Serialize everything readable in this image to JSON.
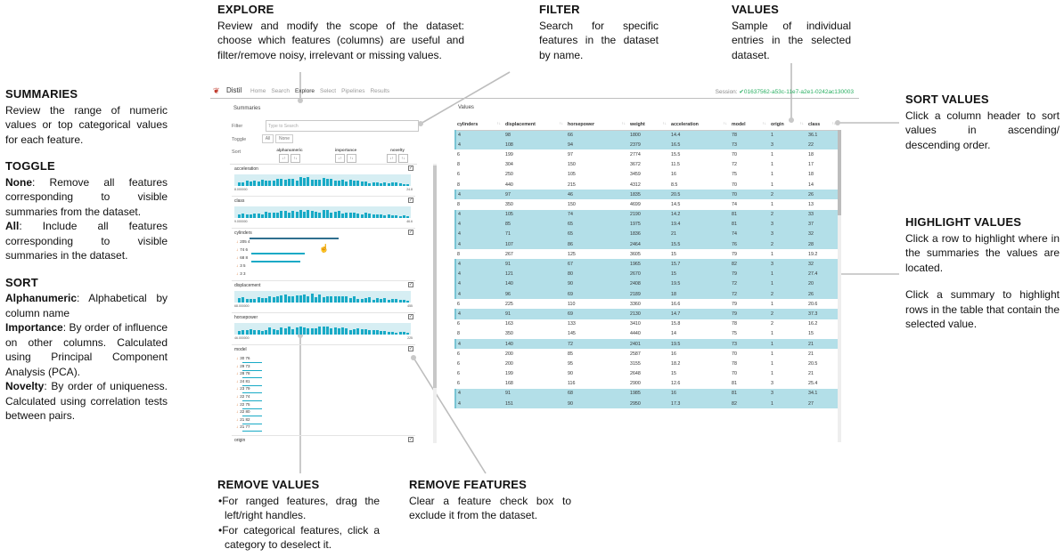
{
  "annotations": {
    "explore": {
      "title": "EXPLORE",
      "text": "Review and modify the scope of the dataset: choose which features (columns) are useful and filter/remove noisy, irrelevant or missing values."
    },
    "filter": {
      "title": "FILTER",
      "text": "Search for specific features in the dataset by name."
    },
    "values": {
      "title": "VALUES",
      "text": "Sample of individual entries in the selected dataset."
    },
    "summaries": {
      "title": "SUMMARIES",
      "text": "Review the range of numeric values or top categorical values for each feature."
    },
    "toggle": {
      "title": "TOGGLE",
      "none_label": "None",
      "none_text": ": Remove all features corresponding to visible summaries from the dataset.",
      "all_label": "All",
      "all_text": ": Include all features corresponding to visible summaries in the dataset."
    },
    "sort": {
      "title": "SORT",
      "alpha_label": "Alphanumeric",
      "alpha_text": ": Alphabetical by column name",
      "imp_label": "Importance",
      "imp_text": ": By order of influence on other columns. Calculated using Principal Component Analysis (PCA).",
      "nov_label": "Novelty",
      "nov_text": ": By order of uniqueness. Calculated using correlation tests between pairs."
    },
    "sort_values": {
      "title": "SORT VALUES",
      "text": "Click a column header to sort values in ascending/ descending order."
    },
    "highlight_values": {
      "title": "HIGHLIGHT VALUES",
      "text1": "Click a row to highlight where in the summaries the values are located.",
      "text2": "Click a summary to highlight rows in the table that contain the selected value."
    },
    "remove_values": {
      "title": "REMOVE VALUES",
      "item1": "•For ranged features, drag the left/right handles.",
      "item2": "•For categorical features, click a category to deselect it."
    },
    "remove_features": {
      "title": "REMOVE FEATURES",
      "text": "Clear a feature check box to exclude it from the dataset."
    }
  },
  "app": {
    "brand": "Distil",
    "nav": [
      "Home",
      "Search",
      "Explore",
      "Select",
      "Pipelines",
      "Results"
    ],
    "active_nav": "Explore",
    "session_label": "Session:",
    "session_id": "✔01637562-a53c-11e7-a2e1-0242ac130003",
    "summaries_title": "Summaries",
    "filter_label": "Filter",
    "filter_placeholder": "Type to Search",
    "toggle_label": "Toggle",
    "toggle_all": "All",
    "toggle_none": "None",
    "sort_label": "Sort",
    "sort_groups": [
      "alphanumeric",
      "importance",
      "novelty"
    ],
    "sort_asc": "↓↑",
    "sort_desc": "↑↓",
    "checkmark": "✓",
    "features": {
      "acceleration": {
        "name": "acceleration",
        "min": "8.000000",
        "max": "24.8"
      },
      "class": {
        "name": "class",
        "min": "9.000000",
        "max": "46.6"
      },
      "cylinders": {
        "name": "cylinders",
        "cats": [
          {
            "x": "↓",
            "label": "205 4"
          },
          {
            "x": "↓",
            "label": "74 6"
          },
          {
            "x": "↓",
            "label": "68 8"
          },
          {
            "x": "↓",
            "label": "3 5"
          },
          {
            "x": "↓",
            "label": "3 3"
          }
        ]
      },
      "displacement": {
        "name": "displacement",
        "min": "68.000000",
        "max": "455"
      },
      "horsepower": {
        "name": "horsepower",
        "min": "46.000000",
        "max": "225"
      },
      "model": {
        "name": "model",
        "cats": [
          {
            "x": "↓",
            "label": "30 76"
          },
          {
            "x": "↓",
            "label": "29 73"
          },
          {
            "x": "↓",
            "label": "28 78"
          },
          {
            "x": "↓",
            "label": "24 81"
          },
          {
            "x": "↓",
            "label": "23 79"
          },
          {
            "x": "↓",
            "label": "22 74"
          },
          {
            "x": "↓",
            "label": "22 75"
          },
          {
            "x": "↓",
            "label": "22 80"
          },
          {
            "x": "↓",
            "label": "21 82"
          },
          {
            "x": "↓",
            "label": "21 77"
          }
        ]
      },
      "origin": {
        "name": "origin"
      }
    },
    "values_title": "Values",
    "table": {
      "columns": [
        "cylinders",
        "displacement",
        "horsepower",
        "weight",
        "acceleration",
        "model",
        "origin",
        "class"
      ],
      "sort_arrow": "↑↓",
      "rows": [
        {
          "hl": true,
          "c": [
            "4",
            "98",
            "66",
            "1800",
            "14.4",
            "78",
            "1",
            "36.1"
          ]
        },
        {
          "hl": true,
          "c": [
            "4",
            "108",
            "94",
            "2379",
            "16.5",
            "73",
            "3",
            "22"
          ]
        },
        {
          "hl": false,
          "c": [
            "6",
            "199",
            "97",
            "2774",
            "15.5",
            "70",
            "1",
            "18"
          ]
        },
        {
          "hl": false,
          "c": [
            "8",
            "304",
            "150",
            "3672",
            "11.5",
            "72",
            "1",
            "17"
          ]
        },
        {
          "hl": false,
          "c": [
            "6",
            "250",
            "105",
            "3459",
            "16",
            "75",
            "1",
            "18"
          ]
        },
        {
          "hl": false,
          "c": [
            "8",
            "440",
            "215",
            "4312",
            "8.5",
            "70",
            "1",
            "14"
          ]
        },
        {
          "hl": true,
          "c": [
            "4",
            "97",
            "46",
            "1835",
            "20.5",
            "70",
            "2",
            "26"
          ]
        },
        {
          "hl": false,
          "c": [
            "8",
            "350",
            "150",
            "4699",
            "14.5",
            "74",
            "1",
            "13"
          ]
        },
        {
          "hl": true,
          "c": [
            "4",
            "105",
            "74",
            "2190",
            "14.2",
            "81",
            "2",
            "33"
          ]
        },
        {
          "hl": true,
          "c": [
            "4",
            "85",
            "65",
            "1975",
            "19.4",
            "81",
            "3",
            "37"
          ]
        },
        {
          "hl": true,
          "c": [
            "4",
            "71",
            "65",
            "1836",
            "21",
            "74",
            "3",
            "32"
          ]
        },
        {
          "hl": true,
          "c": [
            "4",
            "107",
            "86",
            "2464",
            "15.5",
            "76",
            "2",
            "28"
          ]
        },
        {
          "hl": false,
          "c": [
            "8",
            "267",
            "125",
            "3605",
            "15",
            "79",
            "1",
            "19.2"
          ]
        },
        {
          "hl": true,
          "c": [
            "4",
            "91",
            "67",
            "1965",
            "15.7",
            "82",
            "3",
            "32"
          ]
        },
        {
          "hl": true,
          "c": [
            "4",
            "121",
            "80",
            "2670",
            "15",
            "79",
            "1",
            "27.4"
          ]
        },
        {
          "hl": true,
          "c": [
            "4",
            "140",
            "90",
            "2408",
            "19.5",
            "72",
            "1",
            "20"
          ]
        },
        {
          "hl": true,
          "c": [
            "4",
            "96",
            "69",
            "2189",
            "18",
            "72",
            "2",
            "26"
          ]
        },
        {
          "hl": false,
          "c": [
            "6",
            "225",
            "110",
            "3360",
            "16.6",
            "79",
            "1",
            "20.6"
          ]
        },
        {
          "hl": true,
          "c": [
            "4",
            "91",
            "69",
            "2130",
            "14.7",
            "79",
            "2",
            "37.3"
          ]
        },
        {
          "hl": false,
          "c": [
            "6",
            "163",
            "133",
            "3410",
            "15.8",
            "78",
            "2",
            "16.2"
          ]
        },
        {
          "hl": false,
          "c": [
            "8",
            "350",
            "145",
            "4440",
            "14",
            "75",
            "1",
            "15"
          ]
        },
        {
          "hl": true,
          "c": [
            "4",
            "140",
            "72",
            "2401",
            "19.5",
            "73",
            "1",
            "21"
          ]
        },
        {
          "hl": false,
          "c": [
            "6",
            "200",
            "85",
            "2587",
            "16",
            "70",
            "1",
            "21"
          ]
        },
        {
          "hl": false,
          "c": [
            "6",
            "200",
            "95",
            "3155",
            "18.2",
            "78",
            "1",
            "20.5"
          ]
        },
        {
          "hl": false,
          "c": [
            "6",
            "199",
            "90",
            "2648",
            "15",
            "70",
            "1",
            "21"
          ]
        },
        {
          "hl": false,
          "c": [
            "6",
            "168",
            "116",
            "2900",
            "12.6",
            "81",
            "3",
            "25.4"
          ]
        },
        {
          "hl": true,
          "c": [
            "4",
            "91",
            "68",
            "1985",
            "16",
            "81",
            "3",
            "34.1"
          ]
        },
        {
          "hl": true,
          "c": [
            "4",
            "151",
            "90",
            "2950",
            "17.3",
            "82",
            "1",
            "27"
          ]
        }
      ]
    },
    "colors": {
      "accent": "#18aac6",
      "highlight": "#b3dfe8",
      "session": "#27ae60"
    }
  }
}
